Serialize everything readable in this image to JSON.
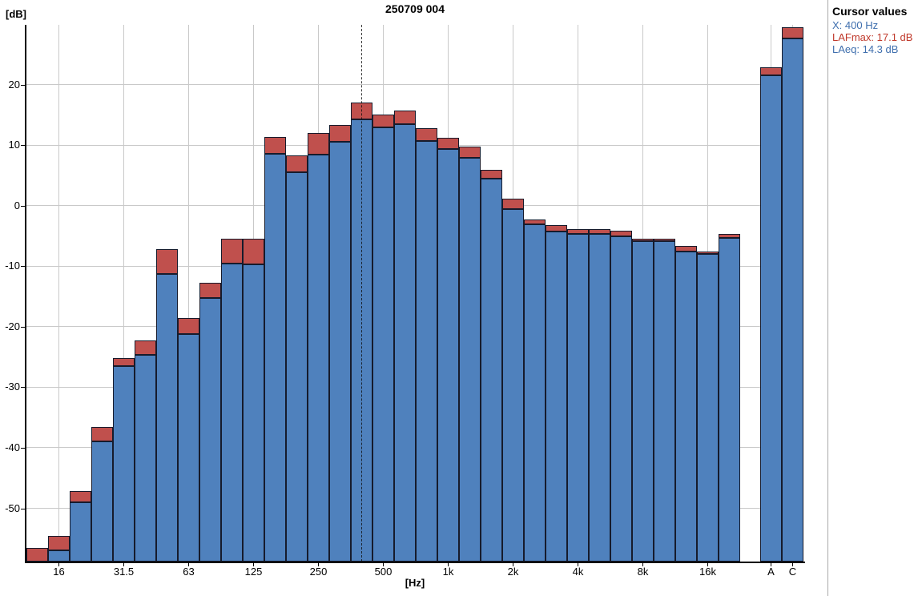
{
  "title": "250709 004",
  "cursor_panel": {
    "header": "Cursor values",
    "x_line": "X: 400 Hz",
    "lafmax_line": "LAFmax: 17.1 dB",
    "laeq_line": "LAeq: 14.3 dB",
    "x_color": "#3f6fae",
    "lafmax_color": "#c0392b",
    "laeq_color": "#3f6fae"
  },
  "chart_data": {
    "type": "bar",
    "title": "250709 004",
    "ylabel": "[dB]",
    "xlabel": "[Hz]",
    "ylim": [
      -58.8,
      29.9
    ],
    "y_ticks": [
      20,
      10,
      0,
      -10,
      -20,
      -30,
      -40,
      -50
    ],
    "x_tick_labels": [
      "16",
      "31.5",
      "63",
      "125",
      "250",
      "500",
      "1k",
      "2k",
      "4k",
      "8k",
      "16k",
      "A",
      "C"
    ],
    "grid": true,
    "legend_position": "none",
    "series_note": "stacked overlay: LAFmax (red) behind/above LAeq (blue), third-octave spectrum",
    "colors": {
      "laeq_fill": "#4f81bd",
      "lafmax_fill": "#c0504d",
      "bar_border": "#161b2c",
      "gridline": "#c9c9c9",
      "axis": "#000000"
    },
    "cursor": {
      "band": "400",
      "lafmax": 17.1,
      "laeq": 14.3
    },
    "bands": [
      {
        "freq": "12.5",
        "label": "",
        "lafmax": -56.6,
        "laeq": -58.8
      },
      {
        "freq": "16",
        "label": "16",
        "lafmax": -54.5,
        "laeq": -56.9
      },
      {
        "freq": "20",
        "label": "",
        "lafmax": -47.1,
        "laeq": -49.0
      },
      {
        "freq": "25",
        "label": "",
        "lafmax": -36.5,
        "laeq": -39.0
      },
      {
        "freq": "31.5",
        "label": "31.5",
        "lafmax": -25.2,
        "laeq": -26.5
      },
      {
        "freq": "40",
        "label": "",
        "lafmax": -22.3,
        "laeq": -24.7
      },
      {
        "freq": "50",
        "label": "",
        "lafmax": -7.2,
        "laeq": -11.3
      },
      {
        "freq": "63",
        "label": "63",
        "lafmax": -18.6,
        "laeq": -21.2
      },
      {
        "freq": "80",
        "label": "",
        "lafmax": -12.7,
        "laeq": -15.2
      },
      {
        "freq": "100",
        "label": "",
        "lafmax": -5.4,
        "laeq": -9.5
      },
      {
        "freq": "125",
        "label": "125",
        "lafmax": -5.4,
        "laeq": -9.7
      },
      {
        "freq": "160",
        "label": "",
        "lafmax": 11.4,
        "laeq": 8.6
      },
      {
        "freq": "200",
        "label": "",
        "lafmax": 8.3,
        "laeq": 5.6
      },
      {
        "freq": "250",
        "label": "250",
        "lafmax": 12.0,
        "laeq": 8.5
      },
      {
        "freq": "315",
        "label": "",
        "lafmax": 13.4,
        "laeq": 10.6
      },
      {
        "freq": "400",
        "label": "",
        "lafmax": 17.1,
        "laeq": 14.3
      },
      {
        "freq": "500",
        "label": "500",
        "lafmax": 15.1,
        "laeq": 12.9
      },
      {
        "freq": "630",
        "label": "",
        "lafmax": 15.7,
        "laeq": 13.5
      },
      {
        "freq": "800",
        "label": "",
        "lafmax": 12.8,
        "laeq": 10.7
      },
      {
        "freq": "1k",
        "label": "1k",
        "lafmax": 11.2,
        "laeq": 9.4
      },
      {
        "freq": "1.25k",
        "label": "",
        "lafmax": 9.8,
        "laeq": 7.9
      },
      {
        "freq": "1.6k",
        "label": "",
        "lafmax": 5.9,
        "laeq": 4.5
      },
      {
        "freq": "2k",
        "label": "2k",
        "lafmax": 1.2,
        "laeq": -0.6
      },
      {
        "freq": "2.5k",
        "label": "",
        "lafmax": -2.3,
        "laeq": -3.1
      },
      {
        "freq": "3.15k",
        "label": "",
        "lafmax": -3.2,
        "laeq": -4.2
      },
      {
        "freq": "4k",
        "label": "4k",
        "lafmax": -3.9,
        "laeq": -4.7
      },
      {
        "freq": "5k",
        "label": "",
        "lafmax": -3.9,
        "laeq": -4.7
      },
      {
        "freq": "6.3k",
        "label": "",
        "lafmax": -4.1,
        "laeq": -5.1
      },
      {
        "freq": "8k",
        "label": "8k",
        "lafmax": -5.4,
        "laeq": -5.9
      },
      {
        "freq": "10k",
        "label": "",
        "lafmax": -5.4,
        "laeq": -5.8
      },
      {
        "freq": "12.5k",
        "label": "",
        "lafmax": -6.6,
        "laeq": -7.5
      },
      {
        "freq": "16k",
        "label": "16k",
        "lafmax": -7.5,
        "laeq": -7.9
      },
      {
        "freq": "20k",
        "label": "",
        "lafmax": -4.6,
        "laeq": -5.3
      }
    ],
    "overall": [
      {
        "freq": "A",
        "label": "A",
        "lafmax": 22.9,
        "laeq": 21.5
      },
      {
        "freq": "C",
        "label": "C",
        "lafmax": 29.5,
        "laeq": 27.7
      }
    ]
  }
}
